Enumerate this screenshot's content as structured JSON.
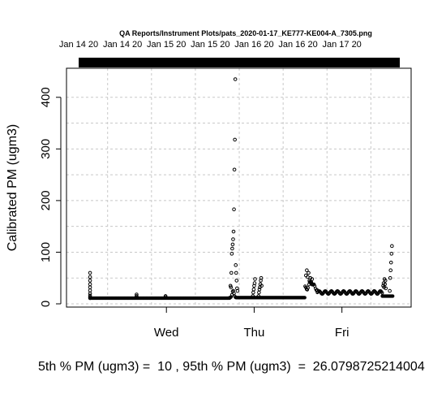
{
  "chart_data": {
    "type": "scatter",
    "title": "QA Reports/Instrument Plots/pats_2020-01-17_KE777-KE004-A_7305.png",
    "ylabel": "Calibrated PM (ugm3)",
    "xlabel": "",
    "footer": "5th % PM (ugm3) =  10 , 95th % PM (ugm3)  =  26.0798725214004",
    "top_axis_labels": [
      "Jan 14 20",
      "Jan 14 20",
      "Jan 15 20",
      "Jan 15 20",
      "Jan 16 20",
      "Jan 16 20",
      "Jan 17 20"
    ],
    "x_tick_labels": [
      "Wed",
      "Thu",
      "Fri"
    ],
    "y_tick_labels": [
      "0",
      "100",
      "200",
      "300",
      "400"
    ],
    "x_units": "days since Tue 00:00",
    "xlim": [
      0.0,
      3.65
    ],
    "ylim": [
      0,
      450
    ],
    "grid": true,
    "marker": "open-circle",
    "series": [
      {
        "name": "",
        "x": [
          0.13,
          0.13,
          0.13,
          0.13,
          0.13,
          0.13,
          0.13,
          0.13,
          0.13,
          0.13,
          0.66,
          0.66,
          0.66,
          0.99,
          0.99,
          1.73,
          1.735,
          1.74,
          1.745,
          1.75,
          1.755,
          1.76,
          1.765,
          1.77,
          1.775,
          1.78,
          1.785,
          1.79,
          1.795,
          1.8,
          1.805,
          1.81,
          1.985,
          1.99,
          1.995,
          2.0,
          2.005,
          2.01,
          2.05,
          2.055,
          2.06,
          2.065,
          2.07,
          2.075,
          2.08,
          2.085,
          2.59,
          2.6,
          2.61,
          2.62,
          2.63,
          2.64,
          2.65,
          2.66,
          3.47,
          3.475,
          3.48,
          3.485,
          3.49,
          3.495,
          3.5,
          3.545,
          3.55,
          3.555,
          3.56,
          3.565,
          3.57
        ],
        "y": [
          60,
          52,
          45,
          38,
          32,
          26,
          20,
          16,
          13,
          11,
          18,
          15,
          13,
          15,
          13,
          35,
          32,
          60,
          97,
          107,
          115,
          125,
          140,
          183,
          260,
          318,
          435,
          75,
          60,
          45,
          30,
          25,
          15,
          22,
          28,
          35,
          40,
          48,
          15,
          22,
          28,
          32,
          38,
          45,
          50,
          35,
          55,
          65,
          52,
          60,
          45,
          50,
          42,
          48,
          35,
          40,
          32,
          48,
          38,
          45,
          30,
          25,
          50,
          65,
          80,
          97,
          112
        ]
      }
    ]
  }
}
